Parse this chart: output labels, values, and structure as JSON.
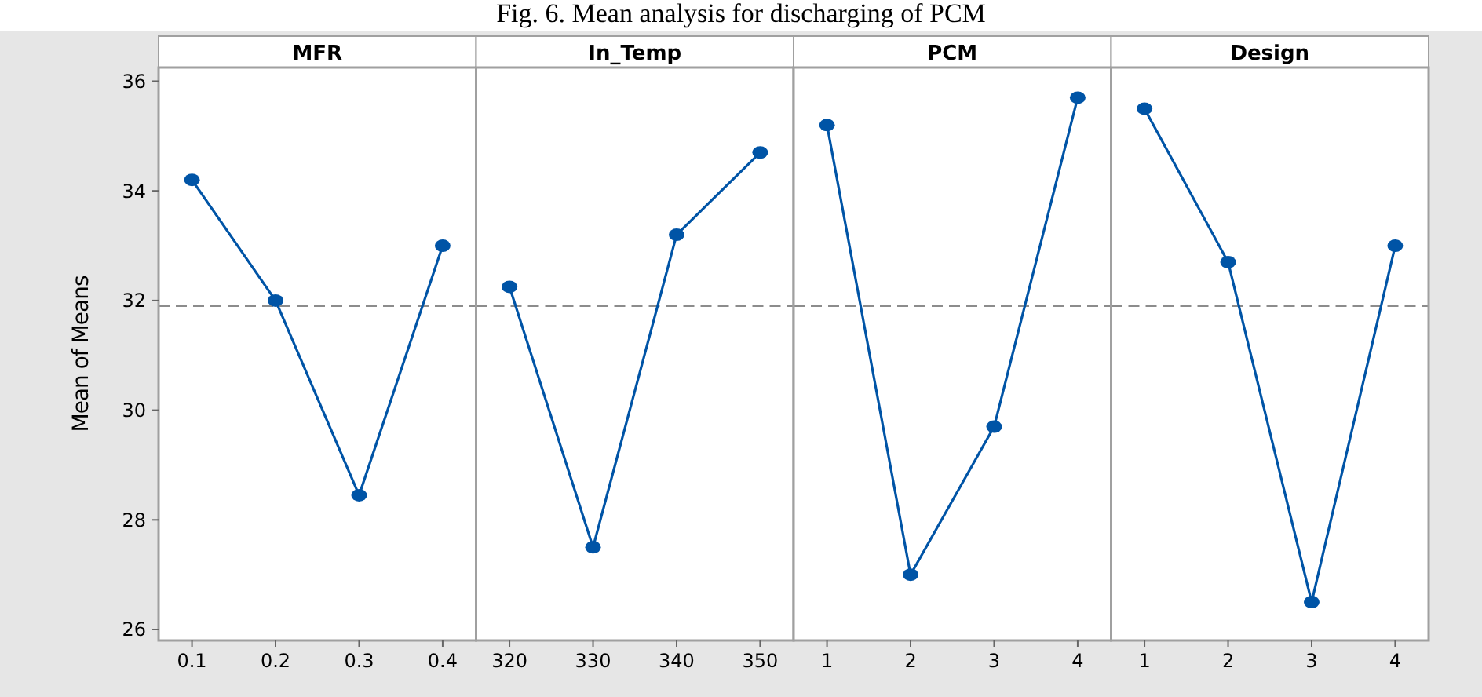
{
  "chart_data": [
    {
      "type": "line",
      "title": "MFR",
      "ylabel": "Mean of Means",
      "annotations": [
        "Fig. 6. Mean analysis for discharging of PCM"
      ],
      "categories": [
        "0.1",
        "0.2",
        "0.3",
        "0.4"
      ],
      "series": [
        {
          "color": "#0054a6",
          "values": [
            34.2,
            32.0,
            28.45,
            33.0
          ]
        }
      ],
      "ylim": [
        25.8,
        36.25
      ],
      "yticks": [
        26,
        28,
        30,
        32,
        34,
        36
      ],
      "ref_lines": [
        {
          "axis": "y",
          "value": 31.9,
          "color": "#8c8c8c",
          "line_style": "dashed"
        }
      ],
      "marker": "circle",
      "line_style": "solid",
      "grid": false
    },
    {
      "type": "line",
      "title": "In_Temp",
      "categories": [
        "320",
        "330",
        "340",
        "350"
      ],
      "series": [
        {
          "color": "#0054a6",
          "values": [
            32.25,
            27.5,
            33.2,
            34.7
          ]
        }
      ],
      "ylim": [
        25.8,
        36.25
      ],
      "tick_labels": "x",
      "ref_lines": [
        {
          "axis": "y",
          "value": 31.9,
          "color": "#8c8c8c",
          "line_style": "dashed"
        }
      ],
      "marker": "circle",
      "line_style": "solid",
      "grid": false
    },
    {
      "type": "line",
      "title": "PCM",
      "categories": [
        "1",
        "2",
        "3",
        "4"
      ],
      "series": [
        {
          "color": "#0054a6",
          "values": [
            35.2,
            27.0,
            29.7,
            35.7
          ]
        }
      ],
      "ylim": [
        25.8,
        36.25
      ],
      "tick_labels": "x",
      "ref_lines": [
        {
          "axis": "y",
          "value": 31.9,
          "color": "#8c8c8c",
          "line_style": "dashed"
        }
      ],
      "marker": "circle",
      "line_style": "solid",
      "grid": false
    },
    {
      "type": "line",
      "title": "Design",
      "categories": [
        "1",
        "2",
        "3",
        "4"
      ],
      "series": [
        {
          "color": "#0054a6",
          "values": [
            35.5,
            32.7,
            26.5,
            33.0
          ]
        }
      ],
      "ylim": [
        25.8,
        36.25
      ],
      "tick_labels": "x",
      "ref_lines": [
        {
          "axis": "y",
          "value": 31.9,
          "color": "#8c8c8c",
          "line_style": "dashed"
        }
      ],
      "marker": "circle",
      "line_style": "solid",
      "grid": false
    }
  ]
}
